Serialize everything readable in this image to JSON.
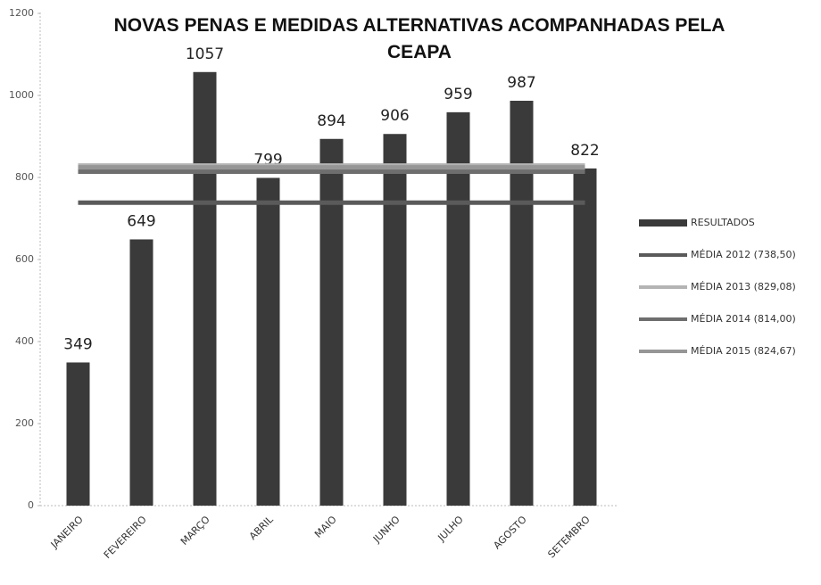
{
  "chart_data": {
    "type": "bar",
    "title": "NOVAS PENAS E MEDIDAS ALTERNATIVAS ACOMPANHADAS PELA CEAPA",
    "categories": [
      "JANEIRO",
      "FEVEREIRO",
      "MARÇO",
      "ABRIL",
      "MAIO",
      "JUNHO",
      "JULHO",
      "AGOSTO",
      "SETEMBRO"
    ],
    "series": [
      {
        "name": "RESULTADOS",
        "type": "bar",
        "color": "#3a3a3a",
        "values": [
          349,
          649,
          1057,
          799,
          894,
          906,
          959,
          987,
          822
        ]
      },
      {
        "name": "MÉDIA 2012 (738,50)",
        "type": "line",
        "color": "#5a5a5a",
        "values": [
          738.5,
          738.5,
          738.5,
          738.5,
          738.5,
          738.5,
          738.5,
          738.5,
          738.5
        ]
      },
      {
        "name": "MÉDIA 2013 (829,08)",
        "type": "line",
        "color": "#b4b4b4",
        "values": [
          829.08,
          829.08,
          829.08,
          829.08,
          829.08,
          829.08,
          829.08,
          829.08,
          829.08
        ]
      },
      {
        "name": "MÉDIA 2014 (814,00)",
        "type": "line",
        "color": "#6e6e6e",
        "values": [
          814,
          814,
          814,
          814,
          814,
          814,
          814,
          814,
          814
        ]
      },
      {
        "name": "MÉDIA 2015 (824,67)",
        "type": "line",
        "color": "#969696",
        "values": [
          824.67,
          824.67,
          824.67,
          824.67,
          824.67,
          824.67,
          824.67,
          824.67,
          824.67
        ]
      }
    ],
    "ylim": [
      0,
      1200
    ],
    "yticks": [
      0,
      200,
      400,
      600,
      800,
      1000,
      1200
    ],
    "legend": "right",
    "grid": false
  }
}
